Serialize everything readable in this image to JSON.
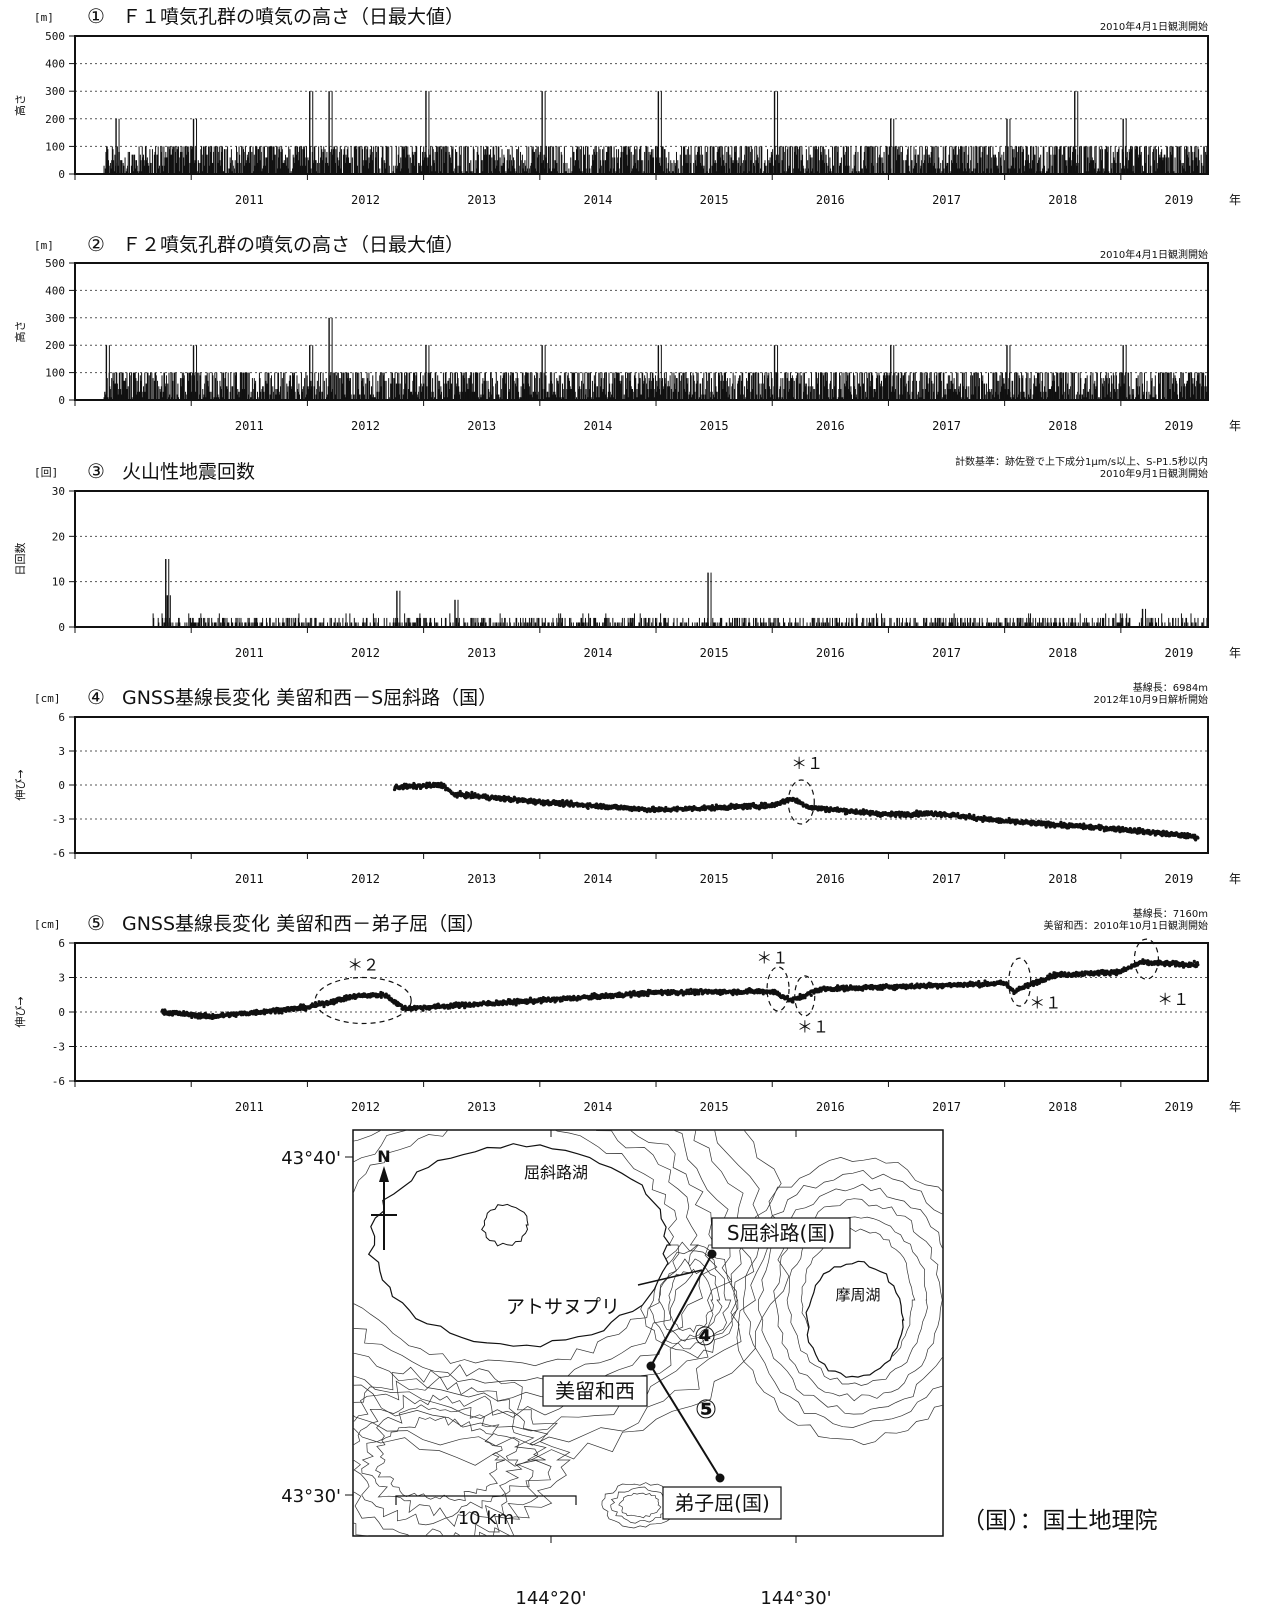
{
  "x_axis": {
    "years": [
      "2011",
      "2012",
      "2013",
      "2014",
      "2015",
      "2016",
      "2017",
      "2018",
      "2019"
    ],
    "unit": "年",
    "range": [
      2010.0,
      2019.75
    ]
  },
  "colors": {
    "ink": "#111111",
    "background": "#ffffff",
    "grid": "#555555"
  },
  "panels": [
    {
      "unit": "[m]",
      "num": "①",
      "title": "Ｆ１噴気孔群の噴気の高さ（日最大値）",
      "note1": "2010年4月1日観測開始",
      "note2": "",
      "ylabel": "高さ",
      "yticks": [
        "0",
        "100",
        "200",
        "300",
        "400",
        "500"
      ],
      "annotations": []
    },
    {
      "unit": "[m]",
      "num": "②",
      "title": "Ｆ２噴気孔群の噴気の高さ（日最大値）",
      "note1": "2010年4月1日観測開始",
      "note2": "",
      "ylabel": "高さ",
      "yticks": [
        "0",
        "100",
        "200",
        "300",
        "400",
        "500"
      ],
      "annotations": []
    },
    {
      "unit": "[回]",
      "num": "③",
      "title": "火山性地震回数",
      "note1": "2010年9月1日観測開始",
      "note2": "計数基準：跡佐登で上下成分1μm/s以上、S-P1.5秒以内",
      "ylabel": "日回数",
      "yticks": [
        "0",
        "10",
        "20",
        "30"
      ],
      "annotations": []
    },
    {
      "unit": "[cm]",
      "num": "④",
      "title": "GNSS基線長変化 美留和西－S屈斜路（国）",
      "note1": "2012年10月9日解析開始",
      "note2": "基線長：6984m",
      "ylabel": "伸び→",
      "yticks": [
        "-6",
        "-3",
        "0",
        "3",
        "6"
      ],
      "annotations": [
        "＊１"
      ]
    },
    {
      "unit": "[cm]",
      "num": "⑤",
      "title": "GNSS基線長変化 美留和西－弟子屈（国）",
      "note1": "美留和西：2010年10月1日観測開始",
      "note2": "基線長：7160m",
      "ylabel": "伸び→",
      "yticks": [
        "-6",
        "-3",
        "0",
        "3",
        "6"
      ],
      "annotations": [
        "＊２",
        "＊１",
        "＊１",
        "＊１",
        "＊１"
      ]
    }
  ],
  "chart_data": [
    {
      "type": "bar",
      "title": "Ｆ１噴気孔群の噴気の高さ（日最大値）",
      "ylabel": "高さ",
      "unit": "m",
      "x_start": "2010-04-01",
      "ylim": [
        0,
        500
      ],
      "typical_range": [
        0,
        100
      ],
      "peaks": [
        {
          "date": "2010-05",
          "value": 200
        },
        {
          "date": "2011-01",
          "value": 200
        },
        {
          "date": "2012-01",
          "value": 300
        },
        {
          "date": "2012-03",
          "value": 300
        },
        {
          "date": "2013-01",
          "value": 300
        },
        {
          "date": "2014-01",
          "value": 300
        },
        {
          "date": "2015-01",
          "value": 300
        },
        {
          "date": "2016-01",
          "value": 300
        },
        {
          "date": "2017-01",
          "value": 200
        },
        {
          "date": "2018-01",
          "value": 200
        },
        {
          "date": "2018-08",
          "value": 300
        },
        {
          "date": "2019-01",
          "value": 200
        }
      ],
      "grid": true
    },
    {
      "type": "bar",
      "title": "Ｆ２噴気孔群の噴気の高さ（日最大値）",
      "ylabel": "高さ",
      "unit": "m",
      "x_start": "2010-04-01",
      "ylim": [
        0,
        500
      ],
      "typical_range": [
        0,
        100
      ],
      "peaks": [
        {
          "date": "2010-04",
          "value": 200
        },
        {
          "date": "2011-01",
          "value": 200
        },
        {
          "date": "2012-01",
          "value": 200
        },
        {
          "date": "2012-03",
          "value": 300
        },
        {
          "date": "2013-01",
          "value": 200
        },
        {
          "date": "2014-01",
          "value": 200
        },
        {
          "date": "2015-01",
          "value": 200
        },
        {
          "date": "2016-01",
          "value": 200
        },
        {
          "date": "2017-01",
          "value": 200
        },
        {
          "date": "2018-01",
          "value": 200
        },
        {
          "date": "2019-01",
          "value": 200
        }
      ],
      "grid": true
    },
    {
      "type": "bar",
      "title": "火山性地震回数",
      "ylabel": "日回数",
      "unit": "回",
      "x_start": "2010-09-01",
      "ylim": [
        0,
        30
      ],
      "typical_range": [
        0,
        2
      ],
      "peaks": [
        {
          "date": "2010-10-05",
          "value": 15
        },
        {
          "date": "2010-10-10",
          "value": 7
        },
        {
          "date": "2012-10-01",
          "value": 8
        },
        {
          "date": "2013-04-01",
          "value": 6
        },
        {
          "date": "2015-06-05",
          "value": 12
        },
        {
          "date": "2019-03-01",
          "value": 4
        }
      ],
      "grid": true
    },
    {
      "type": "scatter",
      "title": "GNSS基線長変化 美留和西－S屈斜路（国）",
      "ylabel": "伸び→",
      "unit": "cm",
      "ylim": [
        -6,
        6
      ],
      "trend": [
        {
          "t": "2012-10",
          "value": -0.2
        },
        {
          "t": "2013-03",
          "value": 0.0
        },
        {
          "t": "2013-04",
          "value": -0.8
        },
        {
          "t": "2014-01",
          "value": -1.5
        },
        {
          "t": "2015-01",
          "value": -2.2
        },
        {
          "t": "2016-01",
          "value": -1.8
        },
        {
          "t": "2016-03",
          "value": -1.2
        },
        {
          "t": "2016-05",
          "value": -2.0
        },
        {
          "t": "2017-01",
          "value": -2.6
        },
        {
          "t": "2017-06",
          "value": -2.5
        },
        {
          "t": "2018-01",
          "value": -3.2
        },
        {
          "t": "2019-01",
          "value": -3.9
        },
        {
          "t": "2019-09",
          "value": -4.6
        }
      ],
      "grid": true
    },
    {
      "type": "scatter",
      "title": "GNSS基線長変化 美留和西－弟子屈（国）",
      "ylabel": "伸び→",
      "unit": "cm",
      "ylim": [
        -6,
        6
      ],
      "trend": [
        {
          "t": "2010-10",
          "value": 0.0
        },
        {
          "t": "2011-03",
          "value": -0.4
        },
        {
          "t": "2012-01",
          "value": 0.4
        },
        {
          "t": "2012-06",
          "value": 1.4
        },
        {
          "t": "2012-09",
          "value": 1.5
        },
        {
          "t": "2012-11",
          "value": 0.3
        },
        {
          "t": "2014-01",
          "value": 1.0
        },
        {
          "t": "2015-01",
          "value": 1.7
        },
        {
          "t": "2016-01",
          "value": 1.8
        },
        {
          "t": "2016-03",
          "value": 1.0
        },
        {
          "t": "2016-06",
          "value": 2.0
        },
        {
          "t": "2018-01",
          "value": 2.5
        },
        {
          "t": "2018-02",
          "value": 1.8
        },
        {
          "t": "2018-06",
          "value": 3.2
        },
        {
          "t": "2019-01",
          "value": 3.5
        },
        {
          "t": "2019-03",
          "value": 4.3
        },
        {
          "t": "2019-09",
          "value": 4.1
        }
      ],
      "grid": true
    }
  ],
  "map": {
    "lat_labels": [
      "43°40'",
      "43°30'"
    ],
    "lon_labels": [
      "144°20'",
      "144°30'"
    ],
    "north": "N",
    "lake_kussharo": "屈斜路湖",
    "lake_mashu": "摩周湖",
    "atosanupuri": "アトサヌプリ",
    "station_s_kussharo": "S屈斜路(国)",
    "station_birawanishi": "美留和西",
    "station_teshikaga": "弟子屈(国)",
    "baseline4": "④",
    "baseline5": "⑤",
    "scale": "10 km",
    "legend": "（国）：国土地理院"
  }
}
